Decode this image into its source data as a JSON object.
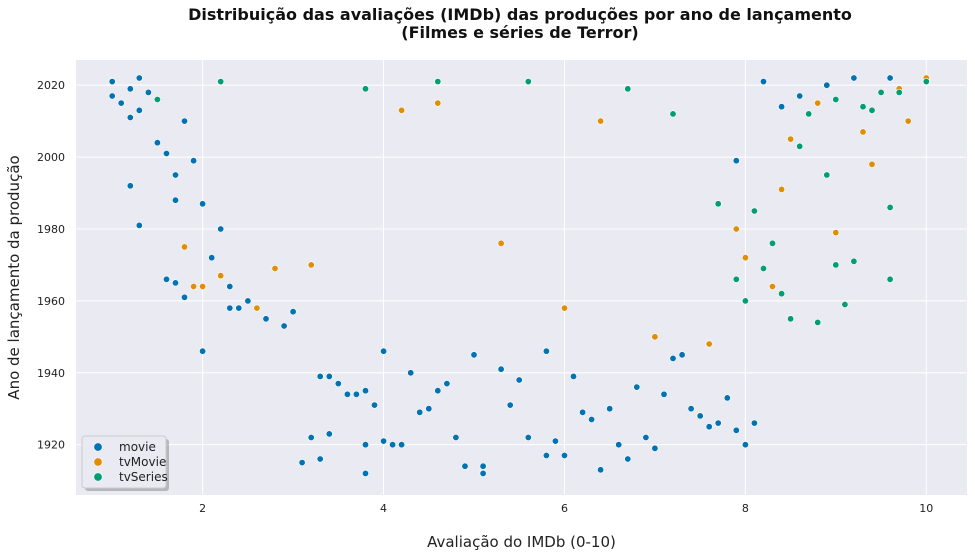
{
  "chart_data": {
    "type": "scatter",
    "title": "Distribuição das avaliações (IMDb) das produções por ano de lançamento",
    "subtitle": "(Filmes e séries de Terror)",
    "xlabel": "Avaliação do IMDb (0-10)",
    "ylabel": "Ano de lançamento da produção",
    "xlim": [
      0.6,
      10.45
    ],
    "ylim": [
      1906,
      2027
    ],
    "x_ticks": [
      2,
      4,
      6,
      8,
      10
    ],
    "y_ticks": [
      1920,
      1940,
      1960,
      1980,
      2000,
      2020
    ],
    "grid": true,
    "legend_position": "lower-left",
    "series": [
      {
        "name": "movie",
        "color": "#0173b2",
        "points": [
          [
            1.0,
            2021
          ],
          [
            1.0,
            2017
          ],
          [
            1.1,
            2015
          ],
          [
            1.2,
            2019
          ],
          [
            1.2,
            2011
          ],
          [
            1.3,
            2022
          ],
          [
            1.3,
            2013
          ],
          [
            1.4,
            2018
          ],
          [
            1.5,
            2004
          ],
          [
            1.6,
            2001
          ],
          [
            1.7,
            1995
          ],
          [
            1.7,
            1988
          ],
          [
            1.8,
            2010
          ],
          [
            1.9,
            1999
          ],
          [
            2.0,
            1987
          ],
          [
            2.0,
            1946
          ],
          [
            1.2,
            1992
          ],
          [
            1.3,
            1981
          ],
          [
            1.6,
            1966
          ],
          [
            1.7,
            1965
          ],
          [
            1.8,
            1961
          ],
          [
            2.1,
            1972
          ],
          [
            2.2,
            1980
          ],
          [
            2.3,
            1964
          ],
          [
            2.3,
            1958
          ],
          [
            2.4,
            1958
          ],
          [
            2.5,
            1960
          ],
          [
            2.7,
            1955
          ],
          [
            2.9,
            1953
          ],
          [
            3.0,
            1957
          ],
          [
            3.1,
            1915
          ],
          [
            3.2,
            1922
          ],
          [
            3.3,
            1939
          ],
          [
            3.3,
            1916
          ],
          [
            3.4,
            1939
          ],
          [
            3.4,
            1923
          ],
          [
            3.5,
            1937
          ],
          [
            3.6,
            1934
          ],
          [
            3.7,
            1934
          ],
          [
            3.8,
            1935
          ],
          [
            3.8,
            1920
          ],
          [
            3.8,
            1912
          ],
          [
            3.9,
            1931
          ],
          [
            4.0,
            1946
          ],
          [
            4.0,
            1921
          ],
          [
            4.1,
            1920
          ],
          [
            4.2,
            1920
          ],
          [
            4.3,
            1940
          ],
          [
            4.4,
            1929
          ],
          [
            4.5,
            1930
          ],
          [
            4.6,
            1935
          ],
          [
            4.7,
            1937
          ],
          [
            4.8,
            1922
          ],
          [
            4.9,
            1914
          ],
          [
            5.0,
            1945
          ],
          [
            5.1,
            1914
          ],
          [
            5.1,
            1912
          ],
          [
            5.3,
            1941
          ],
          [
            5.4,
            1931
          ],
          [
            5.5,
            1938
          ],
          [
            5.6,
            1922
          ],
          [
            5.8,
            1946
          ],
          [
            5.8,
            1917
          ],
          [
            5.9,
            1921
          ],
          [
            6.0,
            1917
          ],
          [
            6.1,
            1939
          ],
          [
            6.2,
            1929
          ],
          [
            6.3,
            1927
          ],
          [
            6.4,
            1913
          ],
          [
            6.5,
            1930
          ],
          [
            6.6,
            1920
          ],
          [
            6.7,
            1916
          ],
          [
            6.8,
            1936
          ],
          [
            6.9,
            1922
          ],
          [
            7.0,
            1919
          ],
          [
            7.1,
            1934
          ],
          [
            7.2,
            1944
          ],
          [
            7.3,
            1945
          ],
          [
            7.4,
            1930
          ],
          [
            7.5,
            1928
          ],
          [
            7.6,
            1925
          ],
          [
            7.7,
            1926
          ],
          [
            7.8,
            1933
          ],
          [
            7.9,
            1924
          ],
          [
            8.0,
            1920
          ],
          [
            8.1,
            1926
          ],
          [
            7.9,
            1999
          ],
          [
            8.2,
            2021
          ],
          [
            8.4,
            2014
          ],
          [
            8.6,
            2017
          ],
          [
            8.9,
            2020
          ],
          [
            9.2,
            2022
          ],
          [
            9.6,
            2022
          ]
        ]
      },
      {
        "name": "tvMovie",
        "color": "#de8f05",
        "points": [
          [
            1.8,
            1975
          ],
          [
            1.9,
            1964
          ],
          [
            2.0,
            1964
          ],
          [
            2.2,
            1967
          ],
          [
            2.6,
            1958
          ],
          [
            2.8,
            1969
          ],
          [
            3.2,
            1970
          ],
          [
            4.2,
            2013
          ],
          [
            4.6,
            2015
          ],
          [
            5.3,
            1976
          ],
          [
            6.0,
            1958
          ],
          [
            6.4,
            2010
          ],
          [
            7.0,
            1950
          ],
          [
            7.6,
            1948
          ],
          [
            7.9,
            1980
          ],
          [
            8.0,
            1972
          ],
          [
            8.3,
            1964
          ],
          [
            8.4,
            1991
          ],
          [
            8.5,
            2005
          ],
          [
            9.0,
            1979
          ],
          [
            9.3,
            2007
          ],
          [
            9.4,
            1998
          ],
          [
            9.7,
            2019
          ],
          [
            9.8,
            2010
          ],
          [
            10.0,
            2022
          ],
          [
            8.8,
            2015
          ]
        ]
      },
      {
        "name": "tvSeries",
        "color": "#029e73",
        "points": [
          [
            1.5,
            2016
          ],
          [
            2.2,
            2021
          ],
          [
            3.8,
            2019
          ],
          [
            4.6,
            2021
          ],
          [
            5.6,
            2021
          ],
          [
            6.7,
            2019
          ],
          [
            7.2,
            2012
          ],
          [
            7.7,
            1987
          ],
          [
            7.9,
            1966
          ],
          [
            8.0,
            1960
          ],
          [
            8.1,
            1985
          ],
          [
            8.2,
            1969
          ],
          [
            8.3,
            1976
          ],
          [
            8.4,
            1962
          ],
          [
            8.5,
            1955
          ],
          [
            8.6,
            2003
          ],
          [
            8.7,
            2012
          ],
          [
            8.8,
            1954
          ],
          [
            8.9,
            1995
          ],
          [
            9.0,
            1970
          ],
          [
            9.1,
            1959
          ],
          [
            9.2,
            1971
          ],
          [
            9.3,
            2014
          ],
          [
            9.4,
            2013
          ],
          [
            9.5,
            2018
          ],
          [
            9.6,
            1986
          ],
          [
            9.6,
            1966
          ],
          [
            9.7,
            2018
          ],
          [
            10.0,
            2021
          ],
          [
            9.0,
            2016
          ]
        ]
      }
    ]
  }
}
